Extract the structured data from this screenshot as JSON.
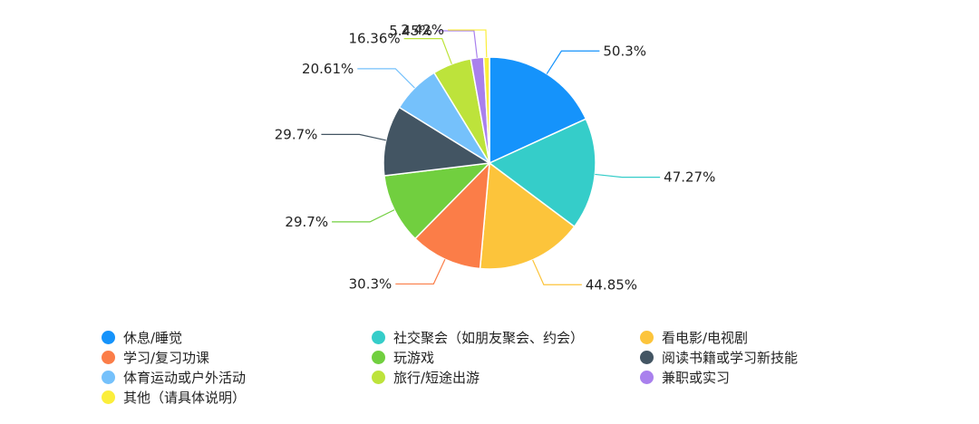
{
  "chart_data": {
    "type": "pie",
    "title": "",
    "categories": [
      "休息/睡觉",
      "社交聚会（如朋友聚会、约会）",
      "看电影/电视剧",
      "学习/复习功课",
      "玩游戏",
      "阅读书籍或学习新技能",
      "体育运动或户外活动",
      "旅行/短途出游",
      "兼职或实习",
      "其他（请具体说明）"
    ],
    "values": [
      50.3,
      47.27,
      44.85,
      30.3,
      29.7,
      29.7,
      20.61,
      16.36,
      5.45,
      2.42
    ],
    "labels": [
      "50.3%",
      "47.27%",
      "44.85%",
      "30.3%",
      "29.7%",
      "29.7%",
      "20.61%",
      "16.36%",
      "5.45%",
      "2.42%"
    ],
    "colors": [
      "#1593fb",
      "#35cdc9",
      "#fcc43b",
      "#fb7d48",
      "#71cf3f",
      "#435563",
      "#75c1fb",
      "#bde33b",
      "#a980ed",
      "#fbee3b"
    ],
    "legend_position": "bottom"
  }
}
